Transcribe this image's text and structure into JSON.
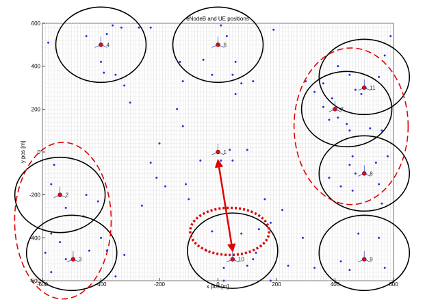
{
  "chart_data": {
    "type": "scatter",
    "title": "eNodeB and UE positions",
    "xlabel": "x pos [m]",
    "ylabel": "y pos [m]",
    "xlim": [
      -600,
      600
    ],
    "ylim": [
      -600,
      600
    ],
    "xticks": [
      "-600",
      "-400",
      "-200",
      "0",
      "200",
      "400",
      "600"
    ],
    "yticks": [
      "600",
      "400",
      "200",
      "0",
      "-200",
      "-400",
      "-600"
    ],
    "grid": true,
    "enodebs": [
      {
        "id": "1",
        "x": 0,
        "y": 0
      },
      {
        "id": "2",
        "x": -540,
        "y": -200
      },
      {
        "id": "3",
        "x": -495,
        "y": -500
      },
      {
        "id": "4",
        "x": -400,
        "y": 500
      },
      {
        "id": "6",
        "x": 0,
        "y": 500
      },
      {
        "id": "7",
        "x": 400,
        "y": 200
      },
      {
        "id": "8",
        "x": 500,
        "y": -100
      },
      {
        "id": "9",
        "x": 500,
        "y": -500
      },
      {
        "id": "10",
        "x": 50,
        "y": -500
      },
      {
        "id": "11",
        "x": 500,
        "y": 300
      }
    ],
    "cell_circles": [
      {
        "x": -400,
        "y": 500
      },
      {
        "x": 0,
        "y": 500
      },
      {
        "x": 500,
        "y": 350
      },
      {
        "x": 440,
        "y": 200
      },
      {
        "x": 500,
        "y": -100
      },
      {
        "x": -540,
        "y": -200
      },
      {
        "x": -500,
        "y": -470
      },
      {
        "x": 50,
        "y": -460
      },
      {
        "x": 500,
        "y": -470
      }
    ],
    "highlight_ellipses": [
      {
        "cx": -530,
        "cy": -320,
        "rx": 165,
        "ry": 365
      },
      {
        "cx": 455,
        "cy": 120,
        "rx": 195,
        "ry": 365
      },
      {
        "cx": 40,
        "cy": -370,
        "rx": 135,
        "ry": 110
      }
    ],
    "arrow": {
      "from": [
        0,
        -40
      ],
      "to": [
        50,
        -460
      ]
    },
    "ue_positions": [
      [
        -580,
        510
      ],
      [
        -450,
        540
      ],
      [
        -380,
        550
      ],
      [
        -360,
        590
      ],
      [
        -330,
        580
      ],
      [
        -270,
        580
      ],
      [
        -400,
        420
      ],
      [
        -390,
        370
      ],
      [
        -350,
        360
      ],
      [
        -320,
        310
      ],
      [
        -230,
        580
      ],
      [
        -130,
        420
      ],
      [
        -120,
        330
      ],
      [
        -50,
        430
      ],
      [
        10,
        590
      ],
      [
        30,
        540
      ],
      [
        60,
        420
      ],
      [
        50,
        360
      ],
      [
        -20,
        360
      ],
      [
        80,
        320
      ],
      [
        120,
        330
      ],
      [
        190,
        570
      ],
      [
        -300,
        230
      ],
      [
        -140,
        200
      ],
      [
        -200,
        40
      ],
      [
        -210,
        -120
      ],
      [
        -110,
        -150
      ],
      [
        -60,
        -40
      ],
      [
        10,
        -40
      ],
      [
        40,
        10
      ],
      [
        50,
        -40
      ],
      [
        100,
        10
      ],
      [
        60,
        270
      ],
      [
        -120,
        120
      ],
      [
        -100,
        -220
      ],
      [
        160,
        -220
      ],
      [
        180,
        -330
      ],
      [
        220,
        -270
      ],
      [
        300,
        330
      ],
      [
        330,
        280
      ],
      [
        360,
        320
      ],
      [
        390,
        250
      ],
      [
        420,
        200
      ],
      [
        380,
        150
      ],
      [
        360,
        210
      ],
      [
        410,
        400
      ],
      [
        450,
        360
      ],
      [
        470,
        290
      ],
      [
        490,
        270
      ],
      [
        550,
        350
      ],
      [
        570,
        450
      ],
      [
        590,
        540
      ],
      [
        410,
        160
      ],
      [
        440,
        130
      ],
      [
        450,
        100
      ],
      [
        520,
        110
      ],
      [
        560,
        100
      ],
      [
        460,
        -20
      ],
      [
        450,
        -60
      ],
      [
        470,
        -100
      ],
      [
        540,
        -50
      ],
      [
        550,
        -150
      ],
      [
        560,
        -240
      ],
      [
        420,
        -160
      ],
      [
        460,
        -180
      ],
      [
        580,
        -20
      ],
      [
        380,
        -120
      ],
      [
        480,
        -380
      ],
      [
        550,
        -400
      ],
      [
        420,
        -510
      ],
      [
        570,
        -540
      ],
      [
        450,
        -550
      ],
      [
        330,
        -540
      ],
      [
        -560,
        -60
      ],
      [
        -570,
        -150
      ],
      [
        -520,
        -260
      ],
      [
        -450,
        -200
      ],
      [
        -460,
        -300
      ],
      [
        -410,
        -230
      ],
      [
        -440,
        -460
      ],
      [
        -570,
        -380
      ],
      [
        -540,
        -420
      ],
      [
        -520,
        -500
      ],
      [
        -400,
        -400
      ],
      [
        -380,
        -460
      ],
      [
        -350,
        -580
      ],
      [
        -570,
        -560
      ],
      [
        -590,
        -470
      ],
      [
        -320,
        -480
      ],
      [
        -260,
        -250
      ],
      [
        -180,
        -160
      ],
      [
        -230,
        -50
      ],
      [
        20,
        -540
      ],
      [
        100,
        -530
      ],
      [
        120,
        -500
      ],
      [
        -40,
        -460
      ],
      [
        -20,
        -370
      ],
      [
        140,
        -360
      ],
      [
        80,
        -380
      ],
      [
        20,
        -600
      ],
      [
        130,
        -470
      ],
      [
        240,
        -530
      ],
      [
        290,
        -400
      ],
      [
        180,
        -600
      ]
    ]
  }
}
